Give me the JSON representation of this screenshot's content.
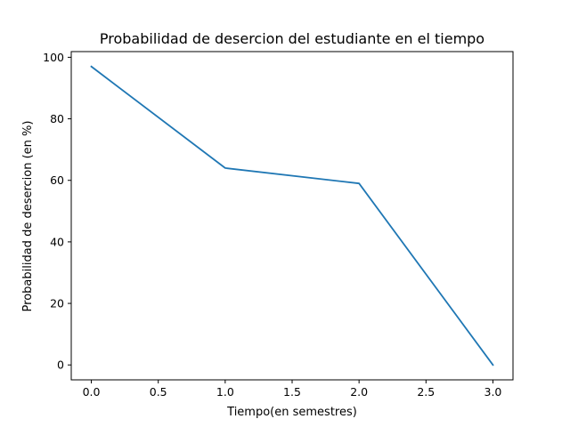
{
  "chart_data": {
    "type": "line",
    "title": "Probabilidad de desercion del estudiante en el tiempo",
    "xlabel": "Tiempo(en semestres)",
    "ylabel": "Probabilidad de desercion (en %)",
    "xlim": [
      -0.15,
      3.15
    ],
    "ylim": [
      -4.85,
      101.85
    ],
    "x_ticks": [
      0.0,
      0.5,
      1.0,
      1.5,
      2.0,
      2.5,
      3.0
    ],
    "x_tick_labels": [
      "0.0",
      "0.5",
      "1.0",
      "1.5",
      "2.0",
      "2.5",
      "3.0"
    ],
    "y_ticks": [
      0,
      20,
      40,
      60,
      80,
      100
    ],
    "y_tick_labels": [
      "0",
      "20",
      "40",
      "60",
      "80",
      "100"
    ],
    "grid": false,
    "legend": "none",
    "series": [
      {
        "color": "#1f77b4",
        "x": [
          0,
          1,
          2,
          3
        ],
        "y": [
          97,
          64,
          59,
          0
        ]
      }
    ]
  }
}
